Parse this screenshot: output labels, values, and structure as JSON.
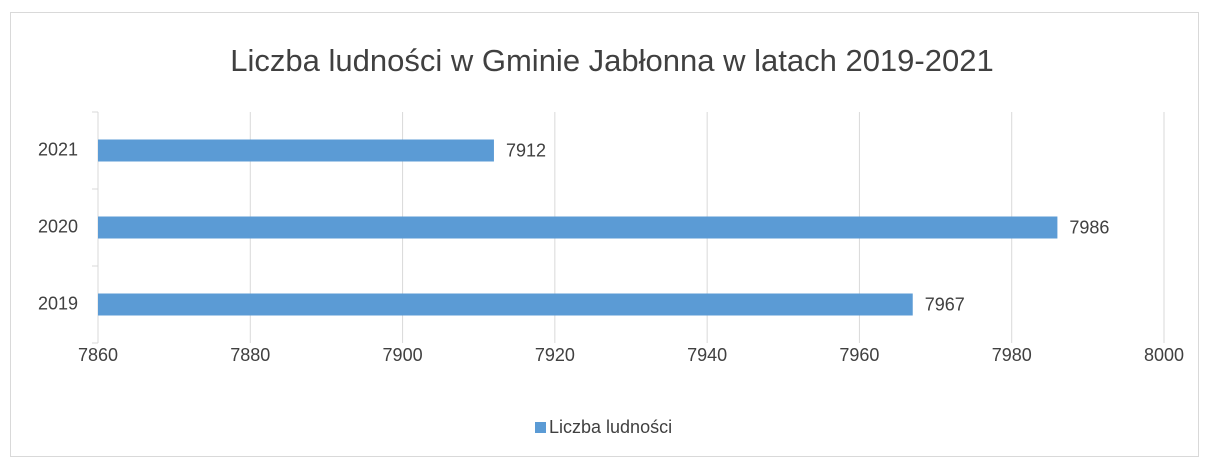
{
  "chart_data": {
    "type": "hbar",
    "title": "Liczba ludności w Gminie Jabłonna w latach 2019-2021",
    "categories": [
      "2019",
      "2020",
      "2021"
    ],
    "series": [
      {
        "name": "Liczba ludności",
        "color": "#5b9bd5",
        "values": [
          7967,
          7986,
          7912
        ]
      }
    ],
    "xlim": [
      7860,
      8000
    ],
    "xticks": [
      7860,
      7880,
      7900,
      7920,
      7940,
      7960,
      7980,
      8000
    ],
    "grid": true,
    "legend": "bottom"
  }
}
